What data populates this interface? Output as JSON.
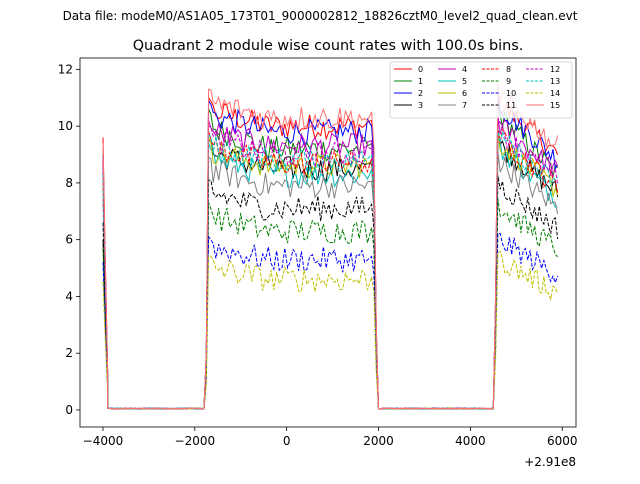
{
  "chart_data": {
    "type": "line",
    "suptitle": "Data file: modeM0/AS1A05_173T01_9000002812_18826cztM0_level2_quad_clean.evt",
    "title": "Quadrant 2 module wise count rates with 100.0s bins.",
    "xlabel": "",
    "ylabel": "",
    "x_offset_label": "+2.91e8",
    "xlim": [
      -4500,
      6300
    ],
    "ylim": [
      -0.6,
      12.4
    ],
    "xticks": [
      -4000,
      -2000,
      0,
      2000,
      4000,
      6000
    ],
    "xtick_labels": [
      "−4000",
      "−2000",
      "0",
      "2000",
      "4000",
      "6000"
    ],
    "yticks": [
      0,
      2,
      4,
      6,
      8,
      10,
      12
    ],
    "ytick_labels": [
      "0",
      "2",
      "4",
      "6",
      "8",
      "10",
      "12"
    ],
    "legend_position": "top-right",
    "segments": [
      {
        "x_start": -4000,
        "x_end": -1800,
        "decay_end": -3900
      },
      {
        "x_start": -1800,
        "x_end": 1900,
        "decay_end": 2000
      },
      {
        "x_start": 4500,
        "x_end": 5900,
        "decay_end": 5900
      }
    ],
    "series": [
      {
        "name": "0",
        "color": "#ff0000",
        "dash": "solid",
        "level": 10.0,
        "peak": 11.0,
        "early": 9.6
      },
      {
        "name": "1",
        "color": "#008000",
        "dash": "solid",
        "level": 9.2,
        "peak": 10.6,
        "early": 8.4
      },
      {
        "name": "2",
        "color": "#0000ff",
        "dash": "solid",
        "level": 9.8,
        "peak": 10.9,
        "early": 9.0
      },
      {
        "name": "3",
        "color": "#000000",
        "dash": "solid",
        "level": 8.5,
        "peak": 9.5,
        "early": 6.0
      },
      {
        "name": "4",
        "color": "#bf00bf",
        "dash": "solid",
        "level": 9.3,
        "peak": 10.2,
        "early": 8.8
      },
      {
        "name": "5",
        "color": "#00bfbf",
        "dash": "solid",
        "level": 8.3,
        "peak": 9.4,
        "early": 7.8
      },
      {
        "name": "6",
        "color": "#bfbf00",
        "dash": "solid",
        "level": 8.6,
        "peak": 9.6,
        "early": 8.1
      },
      {
        "name": "7",
        "color": "#808080",
        "dash": "solid",
        "level": 7.9,
        "peak": 8.9,
        "early": 7.4
      },
      {
        "name": "8",
        "color": "#ff0000",
        "dash": "dashed",
        "level": 8.7,
        "peak": 9.8,
        "early": 8.2
      },
      {
        "name": "9",
        "color": "#008000",
        "dash": "dashed",
        "level": 6.3,
        "peak": 7.3,
        "early": 5.7
      },
      {
        "name": "10",
        "color": "#0000ff",
        "dash": "dashed",
        "level": 5.3,
        "peak": 6.1,
        "early": 5.2
      },
      {
        "name": "11",
        "color": "#000000",
        "dash": "dashed",
        "level": 7.1,
        "peak": 8.1,
        "early": 6.6
      },
      {
        "name": "12",
        "color": "#bf00bf",
        "dash": "dashed",
        "level": 9.0,
        "peak": 10.0,
        "early": 8.6
      },
      {
        "name": "13",
        "color": "#00bfbf",
        "dash": "dashed",
        "level": 8.8,
        "peak": 9.7,
        "early": 8.3
      },
      {
        "name": "14",
        "color": "#bfbf00",
        "dash": "dashed",
        "level": 4.6,
        "peak": 5.4,
        "early": 4.5
      },
      {
        "name": "15",
        "color": "#ff7070",
        "dash": "solid",
        "level": 10.3,
        "peak": 11.3,
        "early": 9.4
      }
    ]
  }
}
